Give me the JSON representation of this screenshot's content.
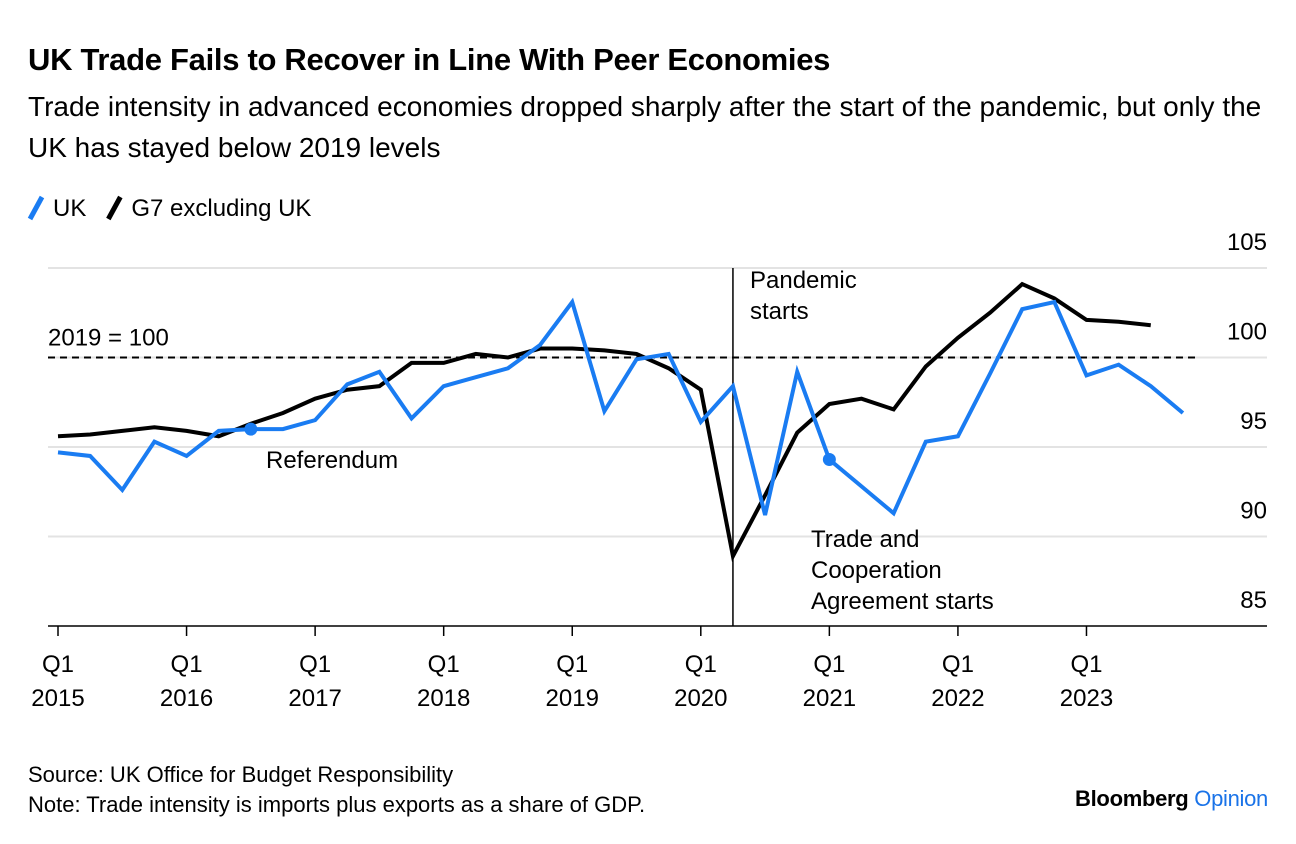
{
  "chart_data": {
    "type": "line",
    "title": "UK Trade Fails to Recover in Line With Peer Economies",
    "subtitle": "Trade intensity in advanced economies dropped sharply after the start of the pandemic, but only the UK has stayed below 2019 levels",
    "categories": [
      "Q1 2015",
      null,
      null,
      null,
      "Q1 2016",
      null,
      null,
      null,
      "Q1 2017",
      null,
      null,
      null,
      "Q1 2018",
      null,
      null,
      null,
      "Q1 2019",
      null,
      null,
      null,
      "Q1 2020",
      null,
      null,
      null,
      "Q1 2021",
      null,
      null,
      null,
      "Q1 2022",
      null,
      null,
      null,
      "Q1 2023",
      null,
      null,
      null
    ],
    "series": [
      {
        "name": "UK",
        "color": "#1a7cf2",
        "values": [
          94.7,
          94.5,
          92.6,
          95.3,
          94.5,
          95.9,
          96.0,
          96.0,
          96.5,
          98.5,
          99.2,
          96.6,
          98.4,
          98.9,
          99.4,
          100.7,
          103.1,
          97.0,
          99.9,
          100.2,
          96.4,
          98.4,
          91.2,
          99.2,
          94.3,
          92.8,
          91.3,
          95.3,
          95.6,
          99.1,
          102.7,
          103.1,
          99.0,
          99.6,
          98.4,
          96.9
        ]
      },
      {
        "name": "G7 excluding UK",
        "color": "#000000",
        "values": [
          95.6,
          95.7,
          95.9,
          96.1,
          95.9,
          95.6,
          96.3,
          96.9,
          97.7,
          98.2,
          98.4,
          99.7,
          99.7,
          100.2,
          100.0,
          100.5,
          100.5,
          100.4,
          100.2,
          99.4,
          98.2,
          88.9,
          92.3,
          95.8,
          97.4,
          97.7,
          97.1,
          99.5,
          101.1,
          102.5,
          104.1,
          103.3,
          102.1,
          102.0,
          101.8,
          null
        ]
      }
    ],
    "ylim": [
      85,
      105
    ],
    "yticks": [
      85,
      90,
      95,
      100,
      105
    ],
    "grid": true,
    "reference_line": {
      "value": 100,
      "label": "2019 = 100"
    },
    "annotations": [
      {
        "lines": [
          "Pandemic",
          "starts"
        ]
      },
      {
        "lines": [
          "Referendum"
        ]
      },
      {
        "lines": [
          "Trade and",
          "Cooperation",
          "Agreement starts"
        ]
      }
    ],
    "source": "Source: UK Office for Budget Responsibility",
    "note": "Note: Trade intensity is imports plus exports as a share of GDP.",
    "brand": [
      "Bloomberg",
      "Opinion"
    ]
  }
}
